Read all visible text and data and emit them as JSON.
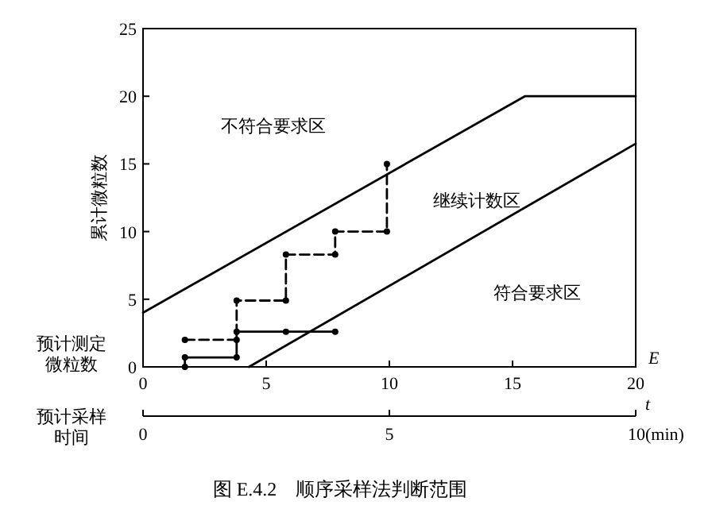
{
  "chart_data": {
    "type": "line",
    "title": "图 E.4.2　顺序采样法判断范围",
    "xlabel": "E",
    "ylabel": "累计微粒数",
    "x2label": "t",
    "xlim": [
      0,
      20
    ],
    "xticks": [
      0,
      5,
      10,
      15,
      20
    ],
    "ylim": [
      0,
      25
    ],
    "yticks": [
      0,
      5,
      10,
      15,
      20,
      25
    ],
    "x2lim": [
      0,
      10
    ],
    "x2ticks": [
      0,
      5,
      {
        "value": 10,
        "label": "10(min)"
      }
    ],
    "series": [
      {
        "color": "#000000",
        "line_style": "solid",
        "marker": "none",
        "x": [
          0,
          15.5,
          20
        ],
        "values": [
          4,
          20,
          20
        ]
      },
      {
        "color": "#000000",
        "line_style": "solid",
        "marker": "none",
        "x": [
          4.3,
          20
        ],
        "values": [
          0,
          16.5
        ]
      },
      {
        "color": "#000000",
        "line_style": "dashed",
        "marker": "circle",
        "x": [
          1.7,
          3.8,
          3.8,
          5.8,
          5.8,
          7.8,
          7.8,
          9.9,
          9.9
        ],
        "values": [
          2,
          2,
          4.9,
          4.9,
          8.3,
          8.3,
          10,
          10,
          15
        ]
      },
      {
        "color": "#000000",
        "line_style": "solid",
        "marker": "circle",
        "x": [
          1.7,
          1.7,
          3.8,
          3.8,
          5.8,
          7.8
        ],
        "values": [
          0,
          0.7,
          0.7,
          2.6,
          2.6,
          2.6
        ]
      }
    ],
    "annotations": [
      "不符合要求区",
      "继续计数区",
      "符合要求区",
      "预计测定微粒数",
      "预计采样时间"
    ],
    "grid": false
  }
}
